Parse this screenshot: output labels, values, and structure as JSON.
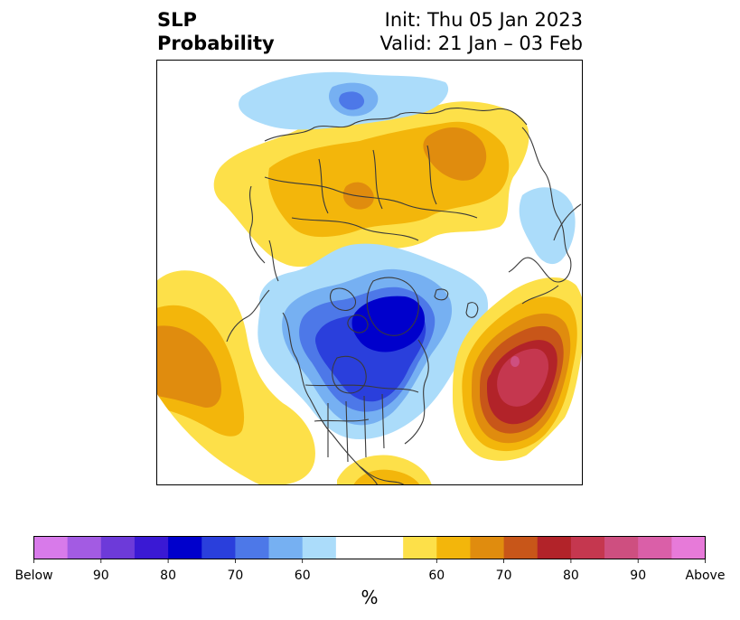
{
  "title": {
    "left_line1": "SLP",
    "left_line2": "Probability",
    "right_line1": "Init: Thu 05 Jan 2023",
    "right_line2": "Valid: 21 Jan – 03 Feb"
  },
  "colorbar": {
    "unit": "%",
    "below_colors": [
      "#d87aea",
      "#a35be3",
      "#6d3ad9",
      "#3a19d4",
      "#0000cc",
      "#2a3fdc",
      "#4d78e8",
      "#76b0f2",
      "#abdcfa"
    ],
    "neutral_color": "#ffffff",
    "above_colors": [
      "#fde049",
      "#f3b60b",
      "#e08c0e",
      "#c85619",
      "#b22329",
      "#c5374f",
      "#ce4f80",
      "#da5fa8",
      "#e77ad9"
    ],
    "tick_labels": [
      {
        "text": "Below",
        "index": 0
      },
      {
        "text": "90",
        "index": 2
      },
      {
        "text": "80",
        "index": 4
      },
      {
        "text": "70",
        "index": 6
      },
      {
        "text": "60",
        "index": 8
      },
      {
        "text": "60",
        "index": 12
      },
      {
        "text": "70",
        "index": 14
      },
      {
        "text": "80",
        "index": 16
      },
      {
        "text": "90",
        "index": 18
      },
      {
        "text": "Above",
        "index": 20
      }
    ]
  },
  "map": {
    "projection": "polar-stereographic",
    "anomaly_regions": [
      {
        "name": "eurasia-above",
        "category": "above",
        "levels": [
          1,
          2,
          3
        ]
      },
      {
        "name": "arctic-canada-below",
        "category": "below",
        "levels": [
          1,
          2,
          3,
          4,
          5
        ]
      },
      {
        "name": "north-atlantic-above",
        "category": "above",
        "levels": [
          1,
          2,
          3,
          4,
          5,
          6
        ]
      },
      {
        "name": "north-pacific-above",
        "category": "above",
        "levels": [
          1,
          2,
          3
        ]
      },
      {
        "name": "polar-below",
        "category": "below",
        "levels": [
          1,
          2,
          3
        ]
      },
      {
        "name": "europe-below",
        "category": "below",
        "levels": [
          1
        ]
      },
      {
        "name": "gulf-above",
        "category": "above",
        "levels": [
          1,
          2
        ]
      }
    ]
  }
}
